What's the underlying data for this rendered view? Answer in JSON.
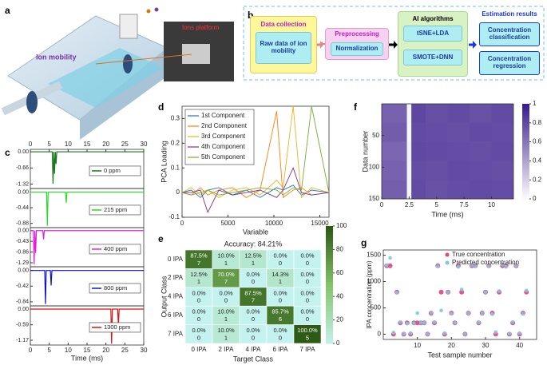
{
  "panel_labels": [
    "a",
    "b",
    "c",
    "d",
    "e",
    "f",
    "g"
  ],
  "illustration": {
    "ion_mobility": "Ion mobility",
    "ions_platform": "Ions platform"
  },
  "flow": {
    "stages": [
      {
        "title": "Data collection",
        "items": [
          "Raw data of ion mobility"
        ]
      },
      {
        "title": "Preprocessing",
        "items": [
          "Normalization"
        ]
      },
      {
        "title": "AI algorithms",
        "items": [
          "tSNE+LDA",
          "SMOTE+DNN"
        ]
      },
      {
        "title": "Estimation results",
        "items": [
          "Concentration classification",
          "Concentration regression"
        ]
      }
    ]
  },
  "chart_data": [
    {
      "type": "stacked_traces",
      "xlabel": "Time (ms)",
      "xlim": [
        0,
        30
      ],
      "xticks": [
        0,
        5,
        10,
        15,
        20,
        25,
        30
      ],
      "series": [
        {
          "name": "0 ppm",
          "color": "#1a7a1a",
          "ylim": [
            -1.5,
            0.1
          ],
          "yticks": [
            {
              "value": 0,
              "label": "0.00"
            },
            -0.66,
            -1.32
          ],
          "x": [
            0,
            5.8,
            6,
            6.2,
            6.4,
            6.6,
            6.8,
            7,
            7.2,
            30
          ],
          "values": [
            0,
            0,
            -1.3,
            0,
            -0.9,
            0,
            -0.5,
            0,
            0,
            0
          ]
        },
        {
          "name": "215 ppm",
          "color": "#22dd22",
          "ylim": [
            -1.0,
            0.1
          ],
          "yticks": [
            {
              "value": 0,
              "label": "0.00"
            },
            -0.44,
            -0.88
          ],
          "x": [
            0,
            4.3,
            4.5,
            4.7,
            9.3,
            9.5,
            9.7,
            30
          ],
          "values": [
            0,
            0,
            -0.95,
            0,
            0,
            -0.3,
            0,
            0
          ]
        },
        {
          "name": "400 ppm",
          "color": "#e020e0",
          "ylim": [
            -1.45,
            0.12
          ],
          "yticks": [
            {
              "value": 0,
              "label": "0.00"
            },
            -0.43,
            -0.86,
            -1.29
          ],
          "x": [
            0,
            0.8,
            1,
            1.2,
            1.4,
            1.6,
            3.3,
            3.5,
            3.7,
            30
          ],
          "values": [
            0,
            0,
            -1.35,
            0,
            -0.9,
            0,
            0,
            -0.35,
            0,
            0
          ]
        },
        {
          "name": "800 ppm",
          "color": "#1010d0",
          "ylim": [
            -0.95,
            0.1
          ],
          "yticks": [
            {
              "value": 0,
              "label": "0.00"
            },
            -0.42,
            -0.84
          ],
          "x": [
            0,
            3.8,
            4,
            4.2,
            5.3,
            5.5,
            5.7,
            30
          ],
          "values": [
            0,
            0,
            -0.9,
            0,
            0,
            -0.4,
            0,
            0
          ]
        },
        {
          "name": "1300 ppm",
          "color": "#dd1010",
          "ylim": [
            -1.35,
            0.12
          ],
          "yticks": [
            {
              "value": 0,
              "label": "0.00"
            },
            -0.59,
            -1.17
          ],
          "x": [
            0,
            21.3,
            21.5,
            21.7,
            23.1,
            23.3,
            23.5,
            30
          ],
          "values": [
            0,
            0,
            -1.3,
            0,
            0,
            -0.6,
            0,
            0
          ]
        }
      ]
    },
    {
      "type": "line",
      "xlabel": "Variable",
      "ylabel": "PCA Loading",
      "xlim": [
        0,
        16000
      ],
      "ylim": [
        -0.1,
        0.35
      ],
      "xticks": [
        0,
        5000,
        10000,
        15000
      ],
      "yticks": [
        -0.1,
        0,
        0.1,
        0.2,
        0.3
      ],
      "legend": "upper left",
      "x": [
        0,
        1000,
        2000,
        2800,
        4000,
        5500,
        7000,
        8500,
        10300,
        11000,
        12100,
        13000,
        14100,
        16000
      ],
      "series": [
        {
          "name": "1st Component",
          "color": "#1f77b4",
          "values": [
            0,
            0.01,
            -0.02,
            0.01,
            0.02,
            -0.01,
            0.01,
            -0.02,
            0.02,
            0.01,
            0.03,
            -0.01,
            0.01,
            0
          ]
        },
        {
          "name": "2nd Component",
          "color": "#ff7f0e",
          "values": [
            0,
            -0.01,
            0.02,
            -0.01,
            0.01,
            0.02,
            -0.02,
            0.01,
            0.33,
            -0.02,
            0.01,
            0.02,
            -0.01,
            0
          ]
        },
        {
          "name": "3rd Component",
          "color": "#edb120",
          "values": [
            0,
            0.02,
            -0.01,
            0.01,
            -0.02,
            0.01,
            0.02,
            -0.01,
            0.05,
            0.02,
            0.35,
            -0.02,
            0.02,
            0
          ]
        },
        {
          "name": "4th Component",
          "color": "#7e2f8e",
          "values": [
            0,
            0,
            0.01,
            -0.08,
            0.01,
            -0.01,
            0,
            0.01,
            -0.02,
            0.01,
            0.1,
            0,
            -0.01,
            0
          ]
        },
        {
          "name": "5th Component",
          "color": "#77ac30",
          "values": [
            0,
            -0.01,
            0,
            0.01,
            -0.01,
            0,
            0.01,
            0.02,
            0.01,
            -0.01,
            0.02,
            0.01,
            0.35,
            0
          ]
        }
      ]
    },
    {
      "type": "confusion_matrix",
      "title": "Accuracy: 84.21%",
      "xlabel": "Target Class",
      "ylabel": "Output Class",
      "classes": [
        "0 IPA",
        "2 IPA",
        "4 IPA",
        "6 IPA",
        "7 IPA"
      ],
      "percent": [
        [
          87.5,
          10.0,
          12.5,
          0,
          0
        ],
        [
          12.5,
          70.0,
          0,
          14.3,
          0
        ],
        [
          0,
          0,
          87.5,
          0,
          0
        ],
        [
          0,
          10.0,
          0,
          85.7,
          0
        ],
        [
          0,
          10.0,
          0,
          0,
          100.0
        ]
      ],
      "percent_labels": [
        [
          "87.5%",
          "10.0%",
          "12.5%",
          "0.0%",
          "0.0%"
        ],
        [
          "12.5%",
          "70.0%",
          "0.0%",
          "14.3%",
          "0.0%"
        ],
        [
          "0.0%",
          "0.0%",
          "87.5%",
          "0.0%",
          "0.0%"
        ],
        [
          "0.0%",
          "10.0%",
          "0.0%",
          "85.7%",
          "0.0%"
        ],
        [
          "0.0%",
          "10.0%",
          "0.0%",
          "0.0%",
          "100.0%"
        ]
      ],
      "counts": [
        [
          7,
          1,
          1,
          0,
          0
        ],
        [
          1,
          7,
          0,
          1,
          0
        ],
        [
          0,
          0,
          7,
          0,
          0
        ],
        [
          0,
          1,
          0,
          6,
          0
        ],
        [
          0,
          1,
          0,
          0,
          5
        ]
      ],
      "clim": [
        0,
        100
      ],
      "cticks": [
        0,
        20,
        40,
        60,
        80,
        100
      ],
      "colors": [
        "#c4f2ef",
        "#86c46a",
        "#2d5a15"
      ]
    },
    {
      "type": "heatmap",
      "xlabel": "Time (ms)",
      "ylabel": "Data number",
      "xlim": [
        0,
        12
      ],
      "xticks": [
        0,
        2.5,
        5,
        7.5,
        10
      ],
      "ylim": [
        0,
        150
      ],
      "yticks": [
        50,
        100,
        150
      ],
      "y_inverted": true,
      "x_edges": [
        0,
        2.3,
        2.7,
        4,
        6,
        8,
        10,
        12
      ],
      "y_edges": [
        0,
        30,
        60,
        90,
        120,
        150
      ],
      "values": [
        [
          0.7,
          0.05,
          0.82,
          0.78,
          0.8,
          0.77,
          0.8
        ],
        [
          0.72,
          0.04,
          0.8,
          0.79,
          0.78,
          0.8,
          0.79
        ],
        [
          0.68,
          0.06,
          0.81,
          0.8,
          0.79,
          0.78,
          0.8
        ],
        [
          0.7,
          0.05,
          0.79,
          0.78,
          0.8,
          0.79,
          0.78
        ],
        [
          0.71,
          0.05,
          0.8,
          0.77,
          0.79,
          0.8,
          0.79
        ]
      ],
      "clim": [
        0,
        1
      ],
      "cticks": [
        0,
        0.2,
        0.4,
        0.6,
        0.8,
        1
      ],
      "colors": [
        "#ffffff",
        "#3b1e8c"
      ]
    },
    {
      "type": "scatter",
      "xlabel": "Test sample number",
      "ylabel": "IPA concentration (ppm)",
      "xlim": [
        0,
        45
      ],
      "xticks": [
        10,
        20,
        30,
        40
      ],
      "ylim": [
        -100,
        1600
      ],
      "yticks": [
        0,
        500,
        1000,
        1500
      ],
      "x": [
        1,
        2,
        3,
        4,
        5,
        6,
        7,
        8,
        9,
        10,
        11,
        12,
        13,
        14,
        15,
        16,
        17,
        18,
        19,
        20,
        21,
        22,
        23,
        24,
        25,
        26,
        27,
        28,
        29,
        30,
        31,
        32,
        33,
        34,
        35,
        36,
        37,
        38,
        39,
        40,
        41,
        42
      ],
      "series": [
        {
          "name": "True concentration",
          "color": "#e0457b",
          "values": [
            1300,
            1300,
            0,
            800,
            215,
            0,
            215,
            0,
            215,
            215,
            215,
            215,
            0,
            400,
            215,
            1300,
            800,
            0,
            800,
            400,
            215,
            1300,
            800,
            0,
            400,
            1300,
            1300,
            215,
            400,
            800,
            1300,
            400,
            0,
            800,
            1300,
            1300,
            0,
            215,
            1300,
            0,
            400,
            800
          ]
        },
        {
          "name": "Predicted concentration",
          "color": "#7ec8e3",
          "values": [
            1310,
            1450,
            30,
            790,
            230,
            10,
            200,
            20,
            210,
            400,
            220,
            215,
            0,
            410,
            230,
            1290,
            450,
            20,
            800,
            390,
            215,
            1280,
            850,
            0,
            400,
            1310,
            1290,
            220,
            400,
            800,
            1290,
            380,
            40,
            820,
            1320,
            1280,
            10,
            230,
            1300,
            20,
            390,
            830
          ]
        }
      ]
    }
  ]
}
